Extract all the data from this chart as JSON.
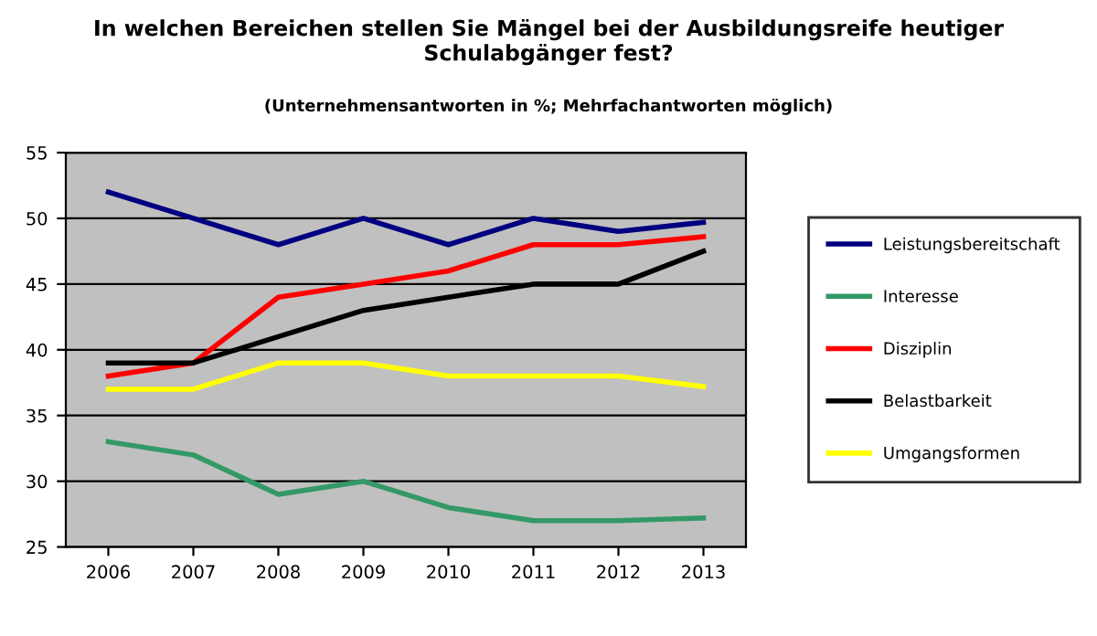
{
  "chart_data": {
    "type": "line",
    "title": "In welchen Bereichen stellen Sie Mängel bei der Ausbildungsreife heutiger\nSchulabgänger fest?",
    "subtitle": "(Unternehmensantworten in %; Mehrfachantworten möglich)",
    "categories": [
      "2006",
      "2007",
      "2008",
      "2009",
      "2010",
      "2011",
      "2012",
      "2013"
    ],
    "series": [
      {
        "name": "Leistungsbereitschaft",
        "color": "#000080",
        "values": [
          52,
          50,
          48,
          50,
          48,
          50,
          49,
          49.7
        ]
      },
      {
        "name": "Interesse",
        "color": "#339966",
        "values": [
          33,
          32,
          29,
          30,
          28,
          27,
          27,
          27.2
        ]
      },
      {
        "name": "Disziplin",
        "color": "#ff0000",
        "values": [
          38,
          39,
          44,
          45,
          46,
          48,
          48,
          48.6
        ]
      },
      {
        "name": "Belastbarkeit",
        "color": "#000000",
        "values": [
          39,
          39,
          41,
          43,
          44,
          45,
          45,
          47.5
        ]
      },
      {
        "name": "Umgangsformen",
        "color": "#ffff00",
        "values": [
          37,
          37,
          39,
          39,
          38,
          38,
          38,
          37.2
        ]
      }
    ],
    "ylim": [
      25,
      55
    ],
    "yticks": [
      25,
      30,
      35,
      40,
      45,
      50,
      55
    ],
    "grid": "y",
    "legend": "right",
    "marker": "none",
    "line_style": "solid"
  }
}
